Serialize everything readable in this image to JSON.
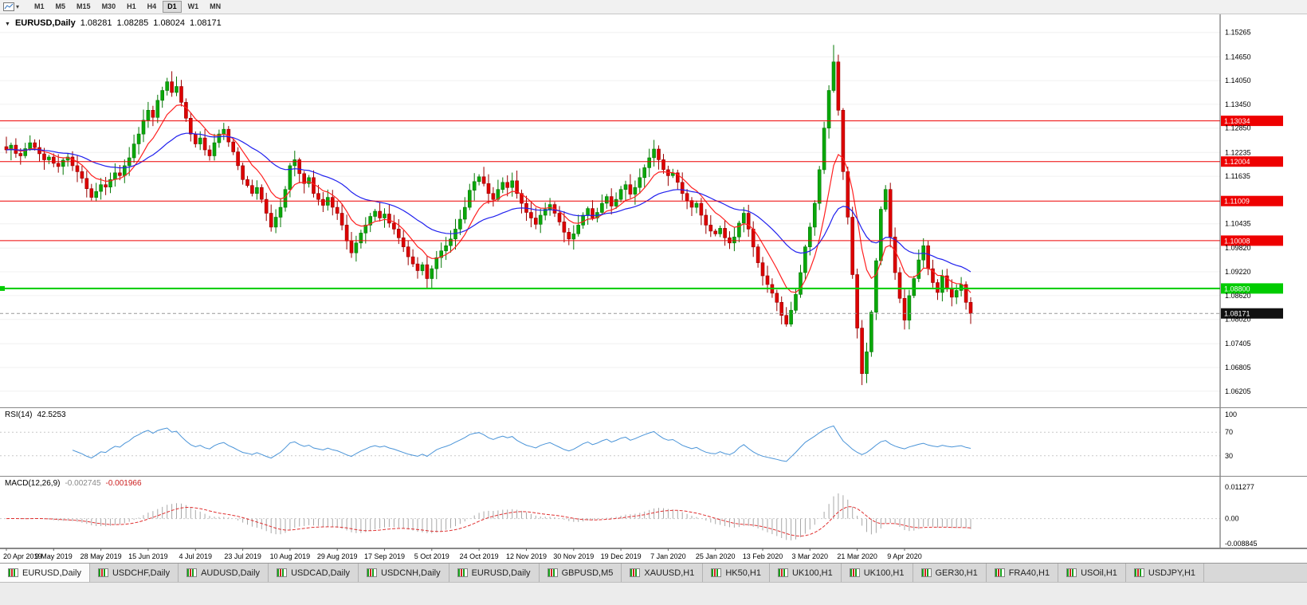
{
  "toolbar": {
    "timeframes": [
      "M1",
      "M5",
      "M15",
      "M30",
      "H1",
      "H4",
      "D1",
      "W1",
      "MN"
    ],
    "active_timeframe": "D1"
  },
  "main_header": {
    "symbol": "EURUSD,Daily",
    "open": "1.08281",
    "high": "1.08285",
    "low": "1.08024",
    "close": "1.08171"
  },
  "rsi_header": {
    "label": "RSI(14)",
    "value": "42.5253"
  },
  "macd_header": {
    "label": "MACD(12,26,9)",
    "macd": "-0.002745",
    "signal": "-0.001966"
  },
  "tabs": [
    "EURUSD,Daily",
    "USDCHF,Daily",
    "AUDUSD,Daily",
    "USDCAD,Daily",
    "USDCNH,Daily",
    "EURUSD,Daily",
    "GBPUSD,M5",
    "XAUUSD,H1",
    "HK50,H1",
    "UK100,H1",
    "UK100,H1",
    "GER30,H1",
    "FRA40,H1",
    "USOil,H1",
    "USDJPY,H1"
  ],
  "active_tab_index": 0,
  "colors": {
    "up": "#0aa80a",
    "up_stroke": "#067806",
    "down": "#dd0000",
    "down_stroke": "#990000",
    "grid": "#f0f0f0",
    "axis_sep": "#555555",
    "splitter": "#888888"
  },
  "chart_data": {
    "type": "candlestick",
    "symbol": "EURUSD",
    "timeframe": "Daily",
    "y_range": [
      1.059,
      1.154
    ],
    "y_ticks": [
      "1.15265",
      "1.14650",
      "1.14050",
      "1.13450",
      "1.12850",
      "1.12235",
      "1.11635",
      "1.10435",
      "1.09820",
      "1.09220",
      "1.08620",
      "1.08020",
      "1.07405",
      "1.06805",
      "1.06205"
    ],
    "x_labels": [
      "20 Apr 2019",
      "9 May 2019",
      "28 May 2019",
      "15 Jun 2019",
      "4 Jul 2019",
      "23 Jul 2019",
      "10 Aug 2019",
      "29 Aug 2019",
      "17 Sep 2019",
      "5 Oct 2019",
      "24 Oct 2019",
      "12 Nov 2019",
      "30 Nov 2019",
      "19 Dec 2019",
      "7 Jan 2020",
      "25 Jan 2020",
      "13 Feb 2020",
      "3 Mar 2020",
      "21 Mar 2020",
      "9 Apr 2020"
    ],
    "bars_per_label": 10,
    "closes": [
      1.123,
      1.1242,
      1.1221,
      1.1215,
      1.1233,
      1.1248,
      1.1236,
      1.122,
      1.1205,
      1.1212,
      1.1196,
      1.1188,
      1.1204,
      1.1212,
      1.119,
      1.1175,
      1.1158,
      1.1132,
      1.111,
      1.1125,
      1.1142,
      1.1136,
      1.1155,
      1.1172,
      1.1165,
      1.119,
      1.121,
      1.1245,
      1.127,
      1.1305,
      1.133,
      1.1312,
      1.1355,
      1.138,
      1.1402,
      1.1375,
      1.139,
      1.135,
      1.131,
      1.127,
      1.1245,
      1.126,
      1.123,
      1.1215,
      1.1248,
      1.127,
      1.1282,
      1.125,
      1.1225,
      1.119,
      1.1155,
      1.114,
      1.112,
      1.1135,
      1.1105,
      1.107,
      1.1035,
      1.106,
      1.1085,
      1.113,
      1.119,
      1.1205,
      1.117,
      1.1145,
      1.116,
      1.112,
      1.1105,
      1.109,
      1.111,
      1.1085,
      1.107,
      1.104,
      1.1,
      1.097,
      1.0995,
      1.102,
      1.104,
      1.1062,
      1.1075,
      1.1058,
      1.1068,
      1.1045,
      1.103,
      1.1008,
      1.0985,
      1.096,
      1.0942,
      1.0925,
      1.094,
      1.0905,
      1.093,
      1.0958,
      1.0975,
      1.0988,
      1.1005,
      1.103,
      1.1055,
      1.1085,
      1.1128,
      1.115,
      1.1162,
      1.1145,
      1.112,
      1.1105,
      1.113,
      1.1148,
      1.1135,
      1.1152,
      1.112,
      1.1095,
      1.1072,
      1.1058,
      1.1042,
      1.1065,
      1.108,
      1.1092,
      1.107,
      1.1048,
      1.1022,
      1.1005,
      1.1018,
      1.104,
      1.1065,
      1.1082,
      1.1058,
      1.1072,
      1.1095,
      1.1112,
      1.1088,
      1.1105,
      1.113,
      1.1142,
      1.1118,
      1.1135,
      1.116,
      1.1185,
      1.121,
      1.1232,
      1.1205,
      1.118,
      1.1165,
      1.1172,
      1.1148,
      1.112,
      1.1102,
      1.1085,
      1.1095,
      1.1065,
      1.104,
      1.1025,
      1.1018,
      1.1032,
      1.1008,
      1.0995,
      1.101,
      1.1045,
      1.107,
      1.103,
      1.0985,
      1.0945,
      1.0912,
      1.089,
      1.0868,
      1.0845,
      1.0812,
      1.079,
      1.0825,
      1.0865,
      1.092,
      1.0985,
      1.1035,
      1.1095,
      1.118,
      1.1285,
      1.138,
      1.1452,
      1.133,
      1.1175,
      1.106,
      1.0915,
      1.078,
      1.0665,
      1.072,
      1.082,
      1.095,
      1.108,
      1.113,
      1.101,
      1.092,
      1.0855,
      1.08,
      1.0862,
      1.0905,
      1.0952,
      1.0988,
      1.093,
      1.0895,
      1.087,
      1.0912,
      1.088,
      1.0858,
      1.0875,
      1.089,
      1.0845,
      1.08171
    ],
    "extremes": [
      {
        "i": 34,
        "high": 1.1412
      },
      {
        "i": 89,
        "low": 1.0879
      },
      {
        "i": 175,
        "high": 1.1495
      },
      {
        "i": 181,
        "low": 1.0636
      }
    ],
    "hlines": [
      {
        "value": 1.13034,
        "label": "1.13034",
        "color": "#ee0000",
        "width": 1
      },
      {
        "value": 1.12004,
        "label": "1.12004",
        "color": "#ee0000",
        "width": 1
      },
      {
        "value": 1.11009,
        "label": "1.11009",
        "color": "#ee0000",
        "width": 1
      },
      {
        "value": 1.10008,
        "label": "1.10008",
        "color": "#ee0000",
        "width": 1
      },
      {
        "value": 1.088,
        "label": "1.08800",
        "color": "#00cc00",
        "width": 2
      }
    ],
    "current_price": {
      "value": 1.08171,
      "label": "1.08171",
      "tag_color": "#111111"
    },
    "moving_averages": [
      {
        "type": "ema",
        "period": 9,
        "color": "#ff2020"
      },
      {
        "type": "ema",
        "period": 30,
        "color": "#2020ee"
      }
    ],
    "rsi": {
      "period": 14,
      "value": 42.5253,
      "levels": [
        100,
        70,
        30
      ],
      "color": "#4a94d8"
    },
    "macd": {
      "fast": 12,
      "slow": 26,
      "signal": 9,
      "macd_value": -0.002745,
      "signal_value": -0.001966,
      "range": [
        -0.008845,
        0.011277
      ],
      "axis_labels": [
        "0.011277",
        "0.00",
        "-0.008845"
      ],
      "histogram_color": "#a8a8a8",
      "signal_color": "#e03030"
    }
  }
}
